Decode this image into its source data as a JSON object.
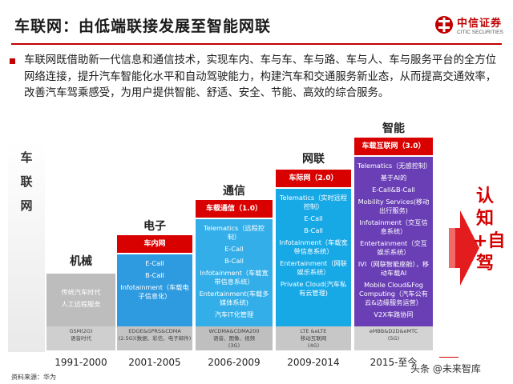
{
  "header": {
    "title": "车联网：由低端联接发展至智能网联",
    "logo_cn": "中信证券",
    "logo_en": "CITIC SECURITIES"
  },
  "intro": {
    "text": "车联网既借助新一代信息和通信技术，实现车内、车与车、车与路、车与人、车与服务平台的全方位网络连接，提升汽车智能化水平和自动驾驶能力，构建汽车和交通服务新业态，从而提高交通效率，改善汽车驾乘感受，为用户提供智能、舒适、安全、节能、高效的综合服务。"
  },
  "axis_label": "车联网",
  "stages": [
    {
      "name": "机械",
      "head": "",
      "items": [
        "传统汽车时代",
        "人工远程服务"
      ],
      "tech": "GSM(2G)\n语音时代",
      "years": "1991-2000"
    },
    {
      "name": "电子",
      "head": "车内网",
      "items": [
        "E-Call",
        "B-Call",
        "Infotainment（车载电子信息化）"
      ],
      "tech": "EDGE&GPRS&CDMA\n(2.5G)(数据、彩信、电子邮件)",
      "years": "2001-2005"
    },
    {
      "name": "通信",
      "head": "车载通信（1.0）",
      "items": [
        "Telematics（远程控制）",
        "E-Call",
        "B-Call",
        "Infotainment（车载宽带信息系统）",
        "Entertainment(车载多媒体系统)",
        "汽车IT化管理"
      ],
      "tech": "WCDMA&CDMA200\n语音、图像、视频\n(3G)",
      "years": "2006-2009"
    },
    {
      "name": "网联",
      "head": "车际网（2.0）",
      "items": [
        "Telematics（实时远程控制）",
        "E-Call",
        "B-Call",
        "Infotainment（车载宽带信息系统）",
        "Entertainment（网联娱乐系统）",
        "Private Cloud(汽车私有云管理)"
      ],
      "tech": "LTE &eLTE\n移动互联网\n(4G)",
      "years": "2009-2014"
    },
    {
      "name": "智能",
      "head": "车载互联网（3.0）",
      "items": [
        "Telematics（无感控制）",
        "基于AI的",
        "E-Call&B-Call",
        "Mobility Services(移动出行服务)",
        "Infotainment（交互信息系统）",
        "Entertainment（交互娱乐系统）",
        "IVI（网联智能座舱），移动车载AI",
        "Mobile Cloud&Fog Computing（汽车公有云&边缘服务运营）",
        "V2X车路协同"
      ],
      "tech": "eMBB&D2D&eMTC\n(5G)",
      "years": "2015-至今"
    }
  ],
  "outcome": "认知+自驾",
  "source": "资料来源：华为",
  "watermark": "头条 @未来智库",
  "colors": {
    "accent": "#d40000",
    "mechanical": "#bdbdbd",
    "electronic": "#2e9be0",
    "communication": "#33aee8",
    "connected": "#17a8e6",
    "intelligent": "#6a3fb5"
  }
}
